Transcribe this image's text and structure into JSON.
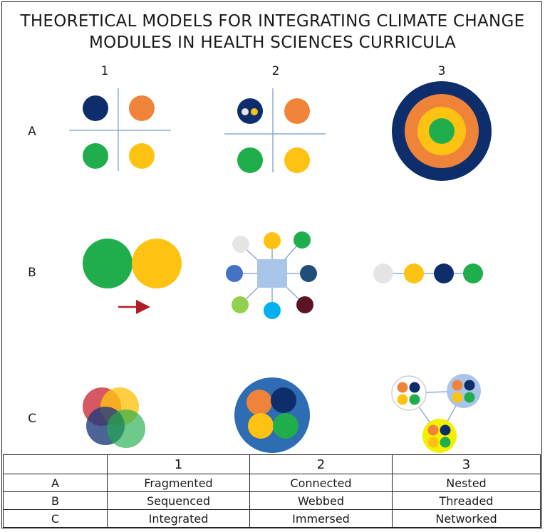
{
  "title": {
    "line1": "THEORETICAL MODELS FOR INTEGRATING CLIMATE CHANGE",
    "line2": "MODULES IN HEALTH SCIENCES CURRICULA"
  },
  "columns": [
    "1",
    "2",
    "3"
  ],
  "rows": [
    "A",
    "B",
    "C"
  ],
  "table": {
    "header": [
      "",
      "1",
      "2",
      "3"
    ],
    "rows": [
      [
        "A",
        "Fragmented",
        "Connected",
        "Nested"
      ],
      [
        "B",
        "Sequenced",
        "Webbed",
        "Threaded"
      ],
      [
        "C",
        "Integrated",
        "Immersed",
        "Networked"
      ]
    ]
  },
  "colors": {
    "navy": "#0d2d6b",
    "orange": "#f0833a",
    "green": "#1fae4b",
    "yellow": "#fec312",
    "red": "#c8202e",
    "light_gray": "#e5e5e5",
    "blue_mid": "#4472c4",
    "dark_teal": "#1f4e79",
    "light_green": "#92d050",
    "sky": "#00b0f0",
    "maroon": "#5b1325",
    "square_blue": "#a9c6ea",
    "immersed_blue": "#2e6db4",
    "arrow": "#b01e23",
    "line": "#8faad3"
  }
}
